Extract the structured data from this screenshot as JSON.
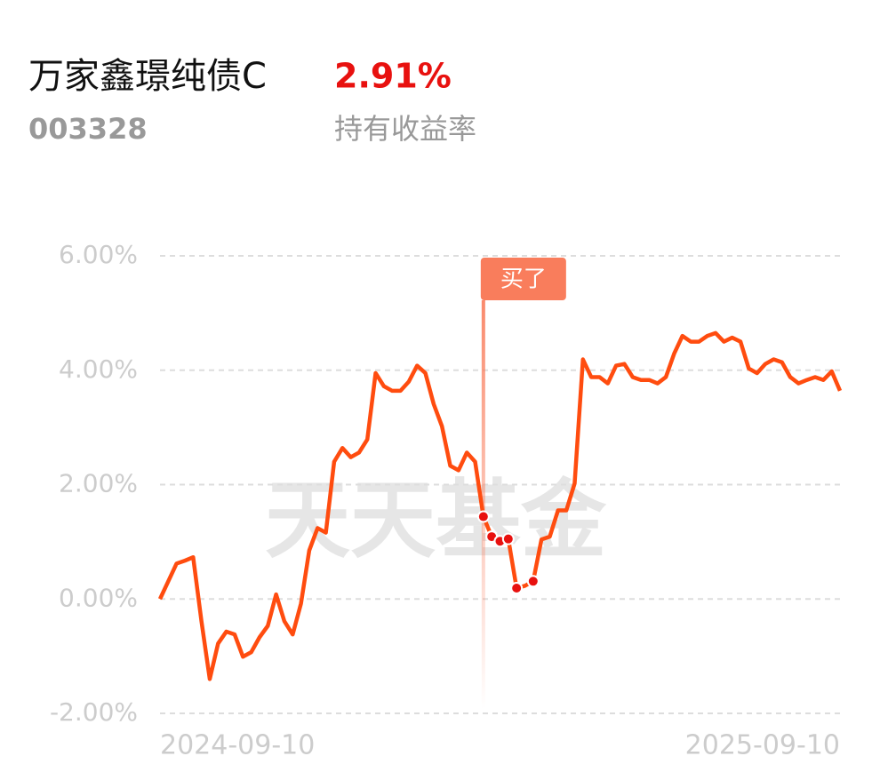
{
  "header": {
    "title": "万家鑫璟纯债C",
    "code": "003328",
    "return": "2.91%",
    "return_label": "持有收益率"
  },
  "chart_data": {
    "type": "line",
    "color": "#ff4c0f",
    "grid": true,
    "watermark": "天天基金",
    "annotation": "买了",
    "categories": [
      "2024-09-10",
      null,
      null,
      null,
      null,
      null,
      null,
      null,
      null,
      null,
      null,
      null,
      null,
      null,
      null,
      null,
      null,
      null,
      null,
      null,
      null,
      null,
      null,
      null,
      null,
      null,
      null,
      null,
      null,
      null,
      null,
      null,
      null,
      null,
      null,
      null,
      null,
      null,
      null,
      null,
      null,
      null,
      null,
      null,
      null,
      null,
      null,
      null,
      null,
      null,
      null,
      null,
      null,
      null,
      null,
      null,
      null,
      null,
      null,
      null,
      null,
      null,
      null,
      null,
      null,
      null,
      null,
      null,
      null,
      null,
      null,
      null,
      null,
      null,
      null,
      null,
      null,
      null,
      null,
      null,
      null,
      null,
      "2025-09-10"
    ],
    "values": [
      0.0,
      0.31,
      0.62,
      0.67,
      0.73,
      -0.39,
      -1.4,
      -0.78,
      -0.57,
      -0.62,
      -1.01,
      -0.93,
      -0.67,
      -0.47,
      0.08,
      -0.39,
      -0.62,
      -0.08,
      0.85,
      1.24,
      1.16,
      2.4,
      2.64,
      2.48,
      2.56,
      2.79,
      3.95,
      3.72,
      3.64,
      3.64,
      3.8,
      4.08,
      3.95,
      3.41,
      3.02,
      2.33,
      2.25,
      2.56,
      2.4,
      1.44,
      1.09,
      1.01,
      1.05,
      0.19,
      0.23,
      0.31,
      1.04,
      1.09,
      1.55,
      1.55,
      2.02,
      4.19,
      3.88,
      3.88,
      3.77,
      4.08,
      4.11,
      3.88,
      3.83,
      3.83,
      3.77,
      3.88,
      4.29,
      4.6,
      4.5,
      4.5,
      4.6,
      4.65,
      4.5,
      4.57,
      4.5,
      4.03,
      3.95,
      4.11,
      4.19,
      4.14,
      3.88,
      3.77,
      3.83,
      3.88,
      3.83,
      3.98,
      3.64
    ],
    "marker_values": [
      null,
      null,
      null,
      null,
      null,
      null,
      null,
      null,
      null,
      null,
      null,
      null,
      null,
      null,
      null,
      null,
      null,
      null,
      null,
      null,
      null,
      null,
      null,
      null,
      null,
      null,
      null,
      null,
      null,
      null,
      null,
      null,
      null,
      null,
      null,
      null,
      null,
      null,
      null,
      1.44,
      1.09,
      1.01,
      1.05,
      0.19,
      null,
      0.31,
      null,
      null,
      null,
      null,
      null,
      null,
      null,
      null,
      null,
      null,
      null,
      null,
      null,
      null,
      null,
      null,
      null,
      null,
      null,
      null,
      null,
      null,
      null,
      null,
      null,
      null,
      null,
      null,
      null,
      null,
      null,
      null,
      null,
      null,
      null,
      null,
      null
    ],
    "ylim": [
      -2,
      6
    ],
    "yticks": [
      {
        "value": -2,
        "label": "-2.00%"
      },
      {
        "value": 0,
        "label": "0.00%"
      },
      {
        "value": 2,
        "label": "2.00%"
      },
      {
        "value": 4,
        "label": "4.00%"
      },
      {
        "value": 6,
        "label": "6.00%"
      }
    ]
  }
}
